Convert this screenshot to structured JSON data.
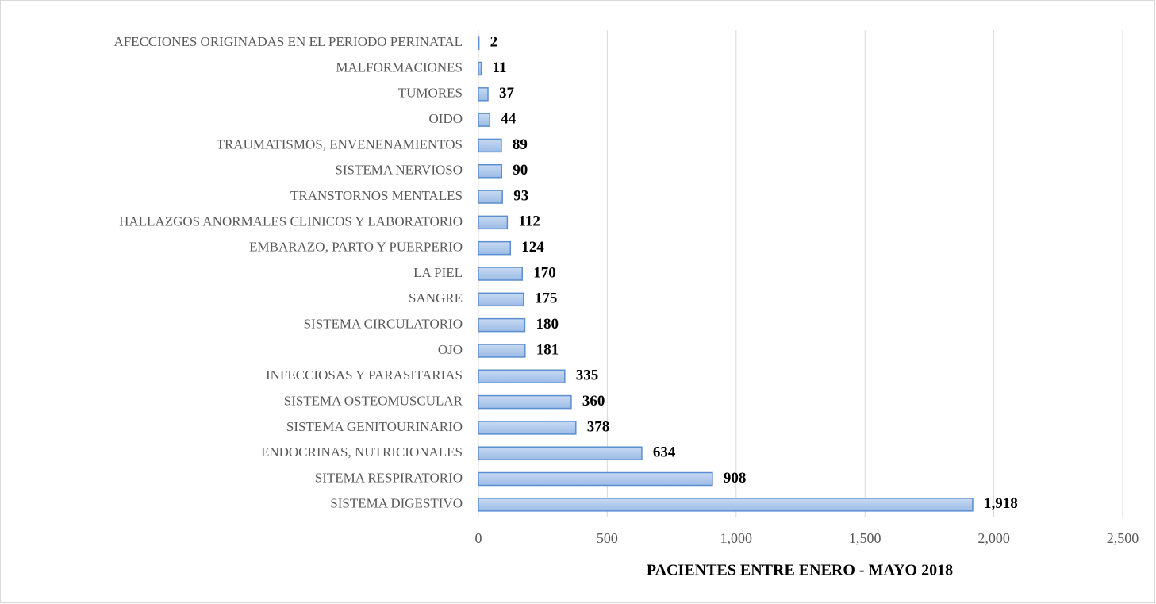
{
  "chart_data": {
    "type": "barh",
    "x_label": "PACIENTES ENTRE ENERO - MAYO 2018",
    "categories": [
      "AFECCIONES ORIGINADAS EN EL PERIODO PERINATAL",
      "MALFORMACIONES",
      "TUMORES",
      "OIDO",
      "TRAUMATISMOS, ENVENENAMIENTOS",
      "SISTEMA NERVIOSO",
      "TRANSTORNOS MENTALES",
      "HALLAZGOS ANORMALES CLINICOS Y LABORATORIO",
      "EMBARAZO, PARTO Y PUERPERIO",
      "LA PIEL",
      "SANGRE",
      "SISTEMA CIRCULATORIO",
      "OJO",
      "INFECCIOSAS Y PARASITARIAS",
      "SISTEMA OSTEOMUSCULAR",
      "SISTEMA GENITOURINARIO",
      "ENDOCRINAS, NUTRICIONALES",
      "SITEMA RESPIRATORIO",
      "SISTEMA DIGESTIVO"
    ],
    "values": [
      2,
      11,
      37,
      44,
      89,
      90,
      93,
      112,
      124,
      170,
      175,
      180,
      181,
      335,
      360,
      378,
      634,
      908,
      1918
    ],
    "value_labels": [
      "2",
      "11",
      "37",
      "44",
      "89",
      "90",
      "93",
      "112",
      "124",
      "170",
      "175",
      "180",
      "181",
      "335",
      "360",
      "378",
      "634",
      "908",
      "1,918"
    ],
    "color": "#a9c4eb",
    "xlim": [
      0,
      2500
    ],
    "xticks": [
      0,
      500,
      {
        "value": 1000,
        "label": "1,000"
      },
      {
        "value": 1500,
        "label": "1,500"
      },
      {
        "value": 2000,
        "label": "2,000"
      },
      {
        "value": 2500,
        "label": "2,500"
      }
    ],
    "grid": true
  }
}
